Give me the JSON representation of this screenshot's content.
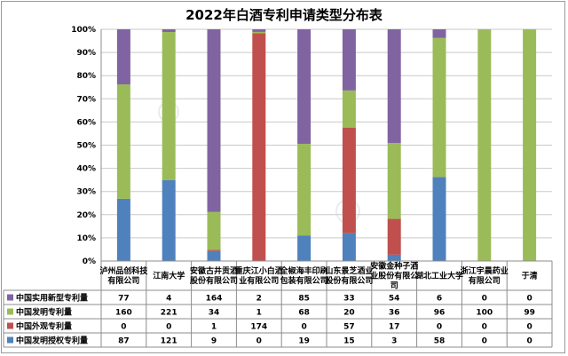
{
  "chart_data": {
    "type": "bar",
    "stacked": "percent",
    "title": "2022年白酒专利申请类型分布表",
    "categories": [
      "泸州品创科技有限公司",
      "江南大学",
      "安徽古井贡酒股份有限公司",
      "重庆江小白酒业有限公司",
      "全椒海丰印刷包装有限公司",
      "山东景芝酒业股份有限公司",
      "安徽金种子酒业股份有限公司",
      "湖北工业大学",
      "浙江宇晨药业有限公司",
      "于清"
    ],
    "series": [
      {
        "name": "中国发明授权专利量",
        "color": "#4f81bd",
        "values": [
          87,
          121,
          9,
          0,
          19,
          15,
          3,
          58,
          0,
          0
        ]
      },
      {
        "name": "中国外观专利量",
        "color": "#c0504d",
        "values": [
          0,
          0,
          1,
          174,
          0,
          57,
          17,
          0,
          0,
          0
        ]
      },
      {
        "name": "中国发明专利量",
        "color": "#9bbb59",
        "values": [
          160,
          221,
          34,
          1,
          68,
          20,
          36,
          96,
          100,
          99
        ]
      },
      {
        "name": "中国实用新型专利量",
        "color": "#8064a2",
        "values": [
          77,
          4,
          164,
          2,
          85,
          33,
          54,
          6,
          0,
          0
        ]
      }
    ],
    "yticks": [
      "0%",
      "10%",
      "20%",
      "30%",
      "40%",
      "50%",
      "60%",
      "70%",
      "80%",
      "90%",
      "100%"
    ],
    "ylim": [
      0,
      100
    ],
    "legend": "data-table",
    "grid": true
  }
}
